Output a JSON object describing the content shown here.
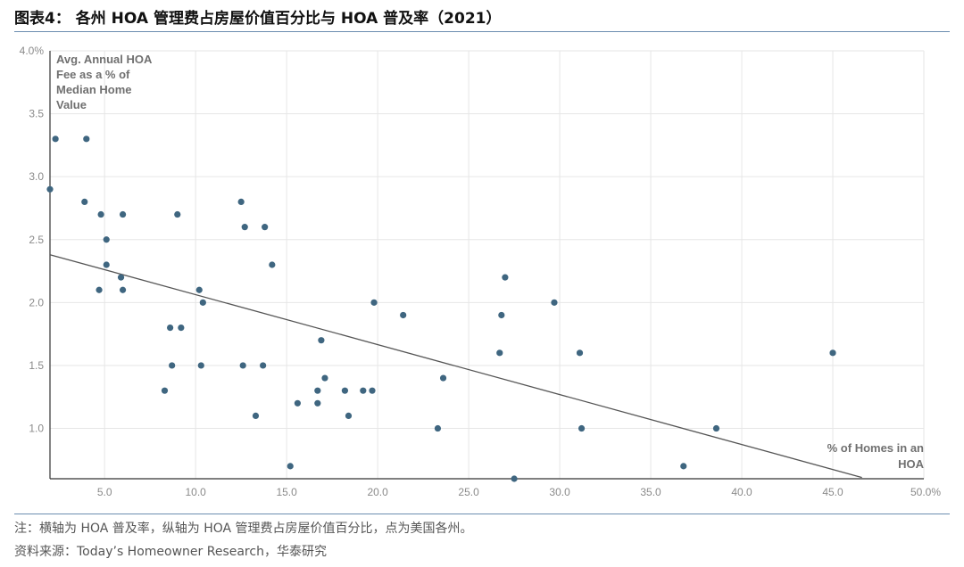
{
  "header": {
    "title": "图表4： 各州 HOA 管理费占房屋价值百分比与 HOA 普及率（2021）"
  },
  "footer": {
    "note": "注：横轴为 HOA 普及率，纵轴为 HOA 管理费占房屋价值百分比，点为美国各州。",
    "source": "资料来源：Today’s Homeowner Research，华泰研究"
  },
  "colors": {
    "point": "#3f6680",
    "trend": "#555555",
    "grid": "#e6e6e6",
    "rule": "#6b8db0"
  },
  "chart_data": {
    "type": "scatter",
    "ylabel_lines": [
      "Avg. Annual HOA",
      "Fee as a % of",
      "Median Home",
      "Value"
    ],
    "xlabel_lines": [
      "% of Homes in an",
      "HOA"
    ],
    "xlim": [
      2.0,
      50.0
    ],
    "ylim": [
      0.6,
      4.0
    ],
    "x_ticks": [
      "5.0",
      "10.0",
      "15.0",
      "20.0",
      "25.0",
      "30.0",
      "35.0",
      "40.0",
      "45.0",
      "50.0%"
    ],
    "x_tick_values": [
      5,
      10,
      15,
      20,
      25,
      30,
      35,
      40,
      45,
      50
    ],
    "y_ticks": [
      "1.0",
      "1.5",
      "2.0",
      "2.5",
      "3.0",
      "3.5",
      "4.0%"
    ],
    "y_tick_values": [
      1.0,
      1.5,
      2.0,
      2.5,
      3.0,
      3.5,
      4.0
    ],
    "grid": true,
    "trendline": {
      "x": [
        2.0,
        46.6
      ],
      "y": [
        2.38,
        0.61
      ]
    },
    "points": [
      {
        "x": 2.3,
        "y": 3.3
      },
      {
        "x": 4.0,
        "y": 3.3
      },
      {
        "x": 2.0,
        "y": 2.9
      },
      {
        "x": 3.9,
        "y": 2.8
      },
      {
        "x": 4.8,
        "y": 2.7
      },
      {
        "x": 6.0,
        "y": 2.7
      },
      {
        "x": 5.1,
        "y": 2.5
      },
      {
        "x": 5.1,
        "y": 2.3
      },
      {
        "x": 5.9,
        "y": 2.2
      },
      {
        "x": 4.7,
        "y": 2.1
      },
      {
        "x": 6.0,
        "y": 2.1
      },
      {
        "x": 9.0,
        "y": 2.7
      },
      {
        "x": 12.5,
        "y": 2.8
      },
      {
        "x": 12.7,
        "y": 2.6
      },
      {
        "x": 13.8,
        "y": 2.6
      },
      {
        "x": 14.2,
        "y": 2.3
      },
      {
        "x": 10.2,
        "y": 2.1
      },
      {
        "x": 10.4,
        "y": 2.0
      },
      {
        "x": 8.6,
        "y": 1.8
      },
      {
        "x": 9.2,
        "y": 1.8
      },
      {
        "x": 8.7,
        "y": 1.5
      },
      {
        "x": 10.3,
        "y": 1.5
      },
      {
        "x": 12.6,
        "y": 1.5
      },
      {
        "x": 13.7,
        "y": 1.5
      },
      {
        "x": 8.3,
        "y": 1.3
      },
      {
        "x": 13.3,
        "y": 1.1
      },
      {
        "x": 15.2,
        "y": 0.7
      },
      {
        "x": 15.6,
        "y": 1.2
      },
      {
        "x": 16.7,
        "y": 1.3
      },
      {
        "x": 16.7,
        "y": 1.2
      },
      {
        "x": 16.9,
        "y": 1.7
      },
      {
        "x": 17.1,
        "y": 1.4
      },
      {
        "x": 18.2,
        "y": 1.3
      },
      {
        "x": 18.4,
        "y": 1.1
      },
      {
        "x": 19.2,
        "y": 1.3
      },
      {
        "x": 19.7,
        "y": 1.3
      },
      {
        "x": 19.8,
        "y": 2.0
      },
      {
        "x": 21.4,
        "y": 1.9
      },
      {
        "x": 23.3,
        "y": 1.0
      },
      {
        "x": 23.6,
        "y": 1.4
      },
      {
        "x": 26.7,
        "y": 1.6
      },
      {
        "x": 26.8,
        "y": 1.9
      },
      {
        "x": 27.0,
        "y": 2.2
      },
      {
        "x": 27.5,
        "y": 0.6
      },
      {
        "x": 29.7,
        "y": 2.0
      },
      {
        "x": 31.1,
        "y": 1.6
      },
      {
        "x": 31.2,
        "y": 1.0
      },
      {
        "x": 36.8,
        "y": 0.7
      },
      {
        "x": 38.6,
        "y": 1.0
      },
      {
        "x": 45.0,
        "y": 1.6
      }
    ]
  }
}
